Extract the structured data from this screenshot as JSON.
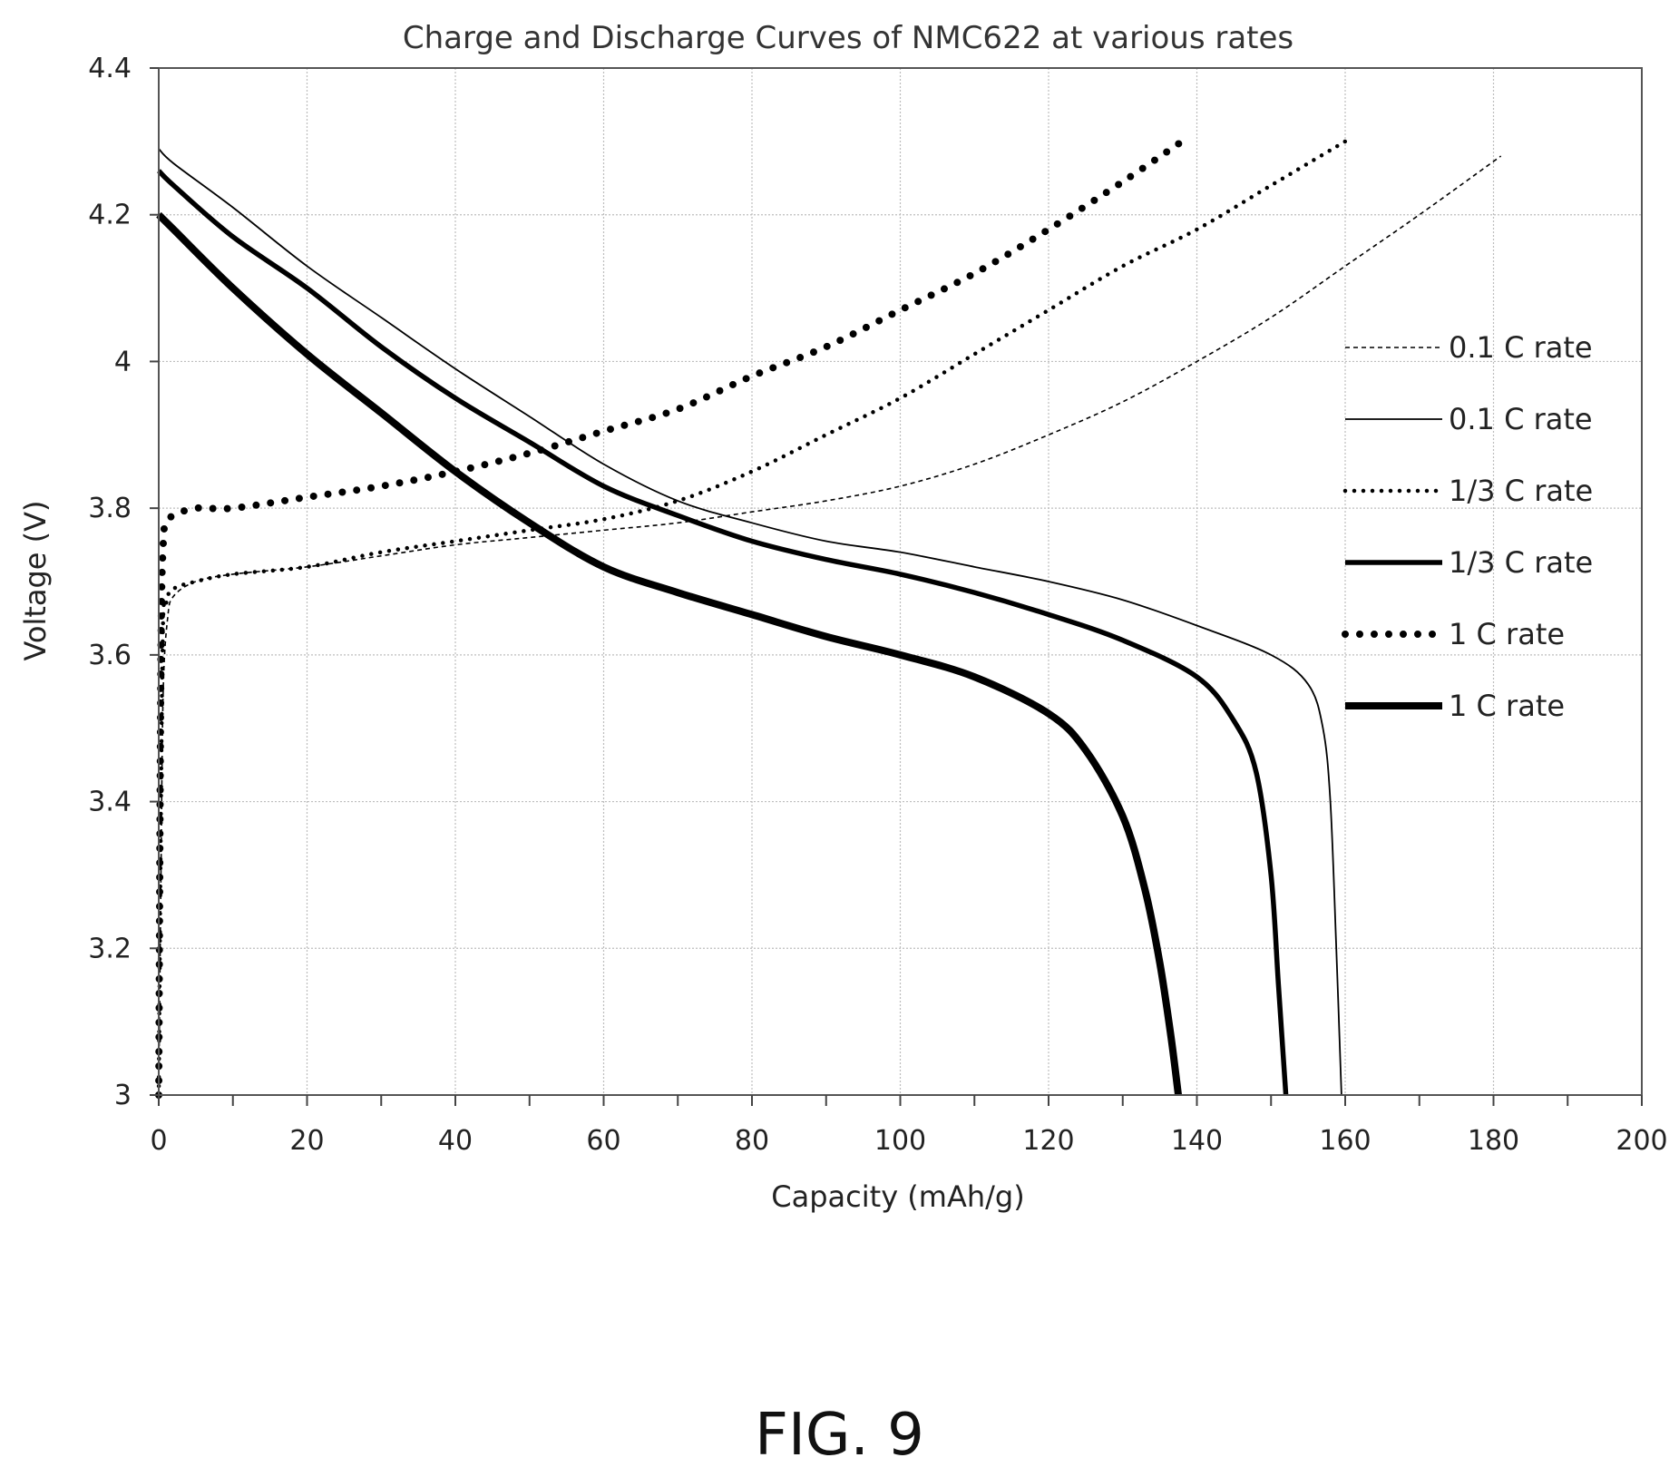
{
  "caption": "FIG. 9",
  "chart_data": {
    "type": "line",
    "title": "Charge and Discharge Curves of NMC622 at various rates",
    "xlabel": "Capacity (mAh/g)",
    "ylabel": "Voltage (V)",
    "xlim": [
      0,
      200
    ],
    "ylim": [
      3,
      4.4
    ],
    "x_ticks": [
      0,
      20,
      40,
      60,
      80,
      100,
      120,
      140,
      160,
      180,
      200
    ],
    "y_ticks": [
      3,
      3.2,
      3.4,
      3.6,
      3.8,
      4,
      4.2,
      4.4
    ],
    "x_tick_labels": [
      "0",
      "20",
      "40",
      "60",
      "80",
      "100",
      "120",
      "140",
      "160",
      "180",
      "200"
    ],
    "y_tick_labels": [
      "3",
      "3.2",
      "3.4",
      "3.6",
      "3.8",
      "4",
      "4.2",
      "4.4"
    ],
    "grid": true,
    "legend_position": "right",
    "series": [
      {
        "name": "0.1 C rate",
        "process": "charge",
        "line_style": "dashed-thin",
        "points": [
          [
            0,
            3.0
          ],
          [
            0.3,
            3.3
          ],
          [
            0.6,
            3.55
          ],
          [
            1.2,
            3.65
          ],
          [
            2,
            3.68
          ],
          [
            5,
            3.7
          ],
          [
            10,
            3.71
          ],
          [
            20,
            3.72
          ],
          [
            30,
            3.735
          ],
          [
            40,
            3.75
          ],
          [
            50,
            3.76
          ],
          [
            60,
            3.77
          ],
          [
            70,
            3.78
          ],
          [
            80,
            3.795
          ],
          [
            90,
            3.81
          ],
          [
            100,
            3.83
          ],
          [
            110,
            3.86
          ],
          [
            120,
            3.9
          ],
          [
            130,
            3.945
          ],
          [
            140,
            4.0
          ],
          [
            150,
            4.06
          ],
          [
            160,
            4.13
          ],
          [
            170,
            4.2
          ],
          [
            181,
            4.28
          ]
        ]
      },
      {
        "name": "0.1 C rate",
        "process": "discharge",
        "line_style": "solid-thin",
        "points": [
          [
            0,
            4.29
          ],
          [
            2,
            4.27
          ],
          [
            10,
            4.21
          ],
          [
            20,
            4.13
          ],
          [
            30,
            4.06
          ],
          [
            40,
            3.99
          ],
          [
            50,
            3.925
          ],
          [
            60,
            3.86
          ],
          [
            70,
            3.81
          ],
          [
            80,
            3.78
          ],
          [
            90,
            3.755
          ],
          [
            100,
            3.74
          ],
          [
            110,
            3.72
          ],
          [
            120,
            3.7
          ],
          [
            130,
            3.675
          ],
          [
            140,
            3.64
          ],
          [
            150,
            3.6
          ],
          [
            155,
            3.56
          ],
          [
            157,
            3.5
          ],
          [
            158,
            3.4
          ],
          [
            158.8,
            3.2
          ],
          [
            159.5,
            3.0
          ]
        ]
      },
      {
        "name": "1/3 C rate",
        "process": "charge",
        "line_style": "dotted-small",
        "points": [
          [
            0,
            3.0
          ],
          [
            0.5,
            3.6
          ],
          [
            1,
            3.67
          ],
          [
            2,
            3.69
          ],
          [
            5,
            3.7
          ],
          [
            10,
            3.71
          ],
          [
            20,
            3.72
          ],
          [
            30,
            3.74
          ],
          [
            40,
            3.755
          ],
          [
            50,
            3.77
          ],
          [
            60,
            3.785
          ],
          [
            70,
            3.81
          ],
          [
            80,
            3.85
          ],
          [
            90,
            3.9
          ],
          [
            100,
            3.95
          ],
          [
            110,
            4.01
          ],
          [
            120,
            4.07
          ],
          [
            130,
            4.13
          ],
          [
            140,
            4.18
          ],
          [
            150,
            4.24
          ],
          [
            160,
            4.3
          ]
        ]
      },
      {
        "name": "1/3 C rate",
        "process": "discharge",
        "line_style": "solid-medium",
        "points": [
          [
            0,
            4.26
          ],
          [
            2,
            4.24
          ],
          [
            10,
            4.17
          ],
          [
            20,
            4.1
          ],
          [
            30,
            4.02
          ],
          [
            40,
            3.95
          ],
          [
            50,
            3.89
          ],
          [
            60,
            3.83
          ],
          [
            70,
            3.79
          ],
          [
            80,
            3.755
          ],
          [
            90,
            3.73
          ],
          [
            100,
            3.71
          ],
          [
            110,
            3.685
          ],
          [
            120,
            3.655
          ],
          [
            130,
            3.62
          ],
          [
            140,
            3.57
          ],
          [
            145,
            3.51
          ],
          [
            148,
            3.44
          ],
          [
            150,
            3.3
          ],
          [
            151,
            3.15
          ],
          [
            152,
            3.0
          ]
        ]
      },
      {
        "name": "1 C rate",
        "process": "charge",
        "line_style": "dotted-large",
        "points": [
          [
            0,
            3.0
          ],
          [
            0.3,
            3.6
          ],
          [
            0.6,
            3.75
          ],
          [
            1,
            3.78
          ],
          [
            2,
            3.79
          ],
          [
            5,
            3.8
          ],
          [
            10,
            3.8
          ],
          [
            20,
            3.815
          ],
          [
            30,
            3.83
          ],
          [
            40,
            3.85
          ],
          [
            50,
            3.875
          ],
          [
            60,
            3.905
          ],
          [
            70,
            3.935
          ],
          [
            80,
            3.98
          ],
          [
            90,
            4.02
          ],
          [
            100,
            4.07
          ],
          [
            110,
            4.12
          ],
          [
            120,
            4.18
          ],
          [
            130,
            4.245
          ],
          [
            138,
            4.3
          ]
        ]
      },
      {
        "name": "1 C rate",
        "process": "discharge",
        "line_style": "solid-thick",
        "points": [
          [
            0,
            4.2
          ],
          [
            2,
            4.18
          ],
          [
            10,
            4.1
          ],
          [
            20,
            4.01
          ],
          [
            30,
            3.93
          ],
          [
            40,
            3.85
          ],
          [
            50,
            3.78
          ],
          [
            60,
            3.72
          ],
          [
            70,
            3.685
          ],
          [
            80,
            3.655
          ],
          [
            90,
            3.625
          ],
          [
            100,
            3.6
          ],
          [
            110,
            3.57
          ],
          [
            120,
            3.52
          ],
          [
            125,
            3.47
          ],
          [
            130,
            3.38
          ],
          [
            133,
            3.28
          ],
          [
            135,
            3.18
          ],
          [
            136.5,
            3.08
          ],
          [
            137.5,
            3.0
          ]
        ]
      }
    ]
  }
}
